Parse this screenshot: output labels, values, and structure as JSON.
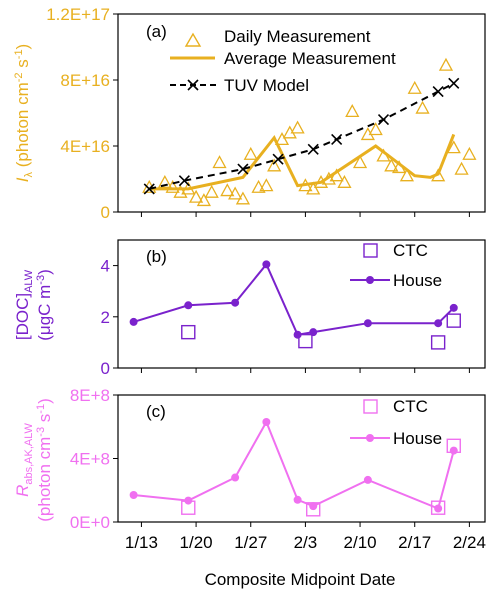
{
  "colors": {
    "gold": "#E8B020",
    "purple": "#7A22CC",
    "pink": "#F070F0",
    "black": "#000000"
  },
  "xlabel": "Composite Midpoint Date",
  "x_tick_labels": [
    "1/13",
    "1/20",
    "1/27",
    "2/3",
    "2/10",
    "2/17",
    "2/24"
  ],
  "x_tick_days": [
    13,
    20,
    27,
    34,
    41,
    48,
    55
  ],
  "x_range": [
    10,
    57
  ],
  "chart_data": [
    {
      "type": "scatter",
      "panel_label": "(a)",
      "ylabel_text": "I",
      "ylabel_sub": "λ",
      "ylabel_unit": "(photon cm",
      "ylabel_sup1": "-2",
      "ylabel_mid": " s",
      "ylabel_sup2": "-1",
      "ylabel_close": ")",
      "ylim": [
        0,
        1.2e+17
      ],
      "y_ticks": [
        0,
        4e+16,
        8e+16,
        1.2e+17
      ],
      "y_tick_labels": [
        "0",
        "4E+16",
        "8E+16",
        "1.2E+17"
      ],
      "legend_position": "top-right",
      "series": [
        {
          "name": "Daily Measurement",
          "kind": "triangle",
          "color": "#E8B020",
          "points": [
            [
              14,
              1.5e+16
            ],
            [
              16,
              1.8e+16
            ],
            [
              17,
              1.5e+16
            ],
            [
              18,
              1.2e+16
            ],
            [
              19,
              1.4e+16
            ],
            [
              20,
              9000000000000000.0
            ],
            [
              21,
              7000000000000000.0
            ],
            [
              22,
              1.2e+16
            ],
            [
              23,
              3e+16
            ],
            [
              24,
              1.3e+16
            ],
            [
              25,
              1.1e+16
            ],
            [
              26,
              8000000000000000.0
            ],
            [
              27,
              3.5e+16
            ],
            [
              28,
              1.5e+16
            ],
            [
              29,
              1.6e+16
            ],
            [
              30,
              2.8e+16
            ],
            [
              31,
              4.4e+16
            ],
            [
              32,
              4.8e+16
            ],
            [
              33,
              5.1e+16
            ],
            [
              34,
              1.6e+16
            ],
            [
              35,
              1.4e+16
            ],
            [
              36,
              1.8e+16
            ],
            [
              37,
              2e+16
            ],
            [
              38,
              2.2e+16
            ],
            [
              39,
              1.8e+16
            ],
            [
              40,
              6.1e+16
            ],
            [
              41,
              3e+16
            ],
            [
              42,
              4.7e+16
            ],
            [
              43,
              5e+16
            ],
            [
              44,
              3.4e+16
            ],
            [
              45,
              2.8e+16
            ],
            [
              46,
              2.7e+16
            ],
            [
              47,
              2.2e+16
            ],
            [
              48,
              7.5e+16
            ],
            [
              49,
              6.3e+16
            ],
            [
              51,
              2.2e+16
            ],
            [
              52,
              8.9e+16
            ],
            [
              53,
              3.9e+16
            ],
            [
              54,
              2.6e+16
            ],
            [
              55,
              3.5e+16
            ]
          ]
        },
        {
          "name": "Average Measurement",
          "kind": "line",
          "color": "#E8B020",
          "points": [
            [
              14,
              1.4e+16
            ],
            [
              19,
              1.4e+16
            ],
            [
              26,
              2.1e+16
            ],
            [
              30,
              4.5e+16
            ],
            [
              33,
              1.6e+16
            ],
            [
              36,
              1.8e+16
            ],
            [
              43,
              4e+16
            ],
            [
              48,
              2.2e+16
            ],
            [
              50,
              2.1e+16
            ],
            [
              51,
              2.3e+16
            ],
            [
              53,
              4.7e+16
            ]
          ]
        },
        {
          "name": "TUV Model",
          "kind": "dashed-x",
          "color": "#000000",
          "points": [
            [
              14,
              1.4e+16
            ],
            [
              18.5,
              1.9e+16
            ],
            [
              26,
              2.6e+16
            ],
            [
              30.5,
              3.2e+16
            ],
            [
              35,
              3.8e+16
            ],
            [
              38,
              4.4e+16
            ],
            [
              44,
              5.6e+16
            ],
            [
              51,
              7.3e+16
            ],
            [
              53,
              7.8e+16
            ]
          ]
        }
      ]
    },
    {
      "type": "line",
      "panel_label": "(b)",
      "ylabel_text": "[DOC]",
      "ylabel_sub": "ALW",
      "ylabel_unit": "(μgC m",
      "ylabel_sup1": "-3",
      "ylabel_close": ")",
      "ylim": [
        0,
        5
      ],
      "y_ticks": [
        0,
        2,
        4
      ],
      "y_tick_labels": [
        "0",
        "2",
        "4"
      ],
      "legend_position": "top-right",
      "series": [
        {
          "name": "CTC",
          "kind": "square",
          "color": "#7A22CC",
          "points": [
            [
              19,
              1.4
            ],
            [
              34,
              1.05
            ],
            [
              51,
              1.0
            ],
            [
              53,
              1.85
            ]
          ]
        },
        {
          "name": "House",
          "kind": "line-dot",
          "color": "#7A22CC",
          "points": [
            [
              12,
              1.8
            ],
            [
              19,
              2.45
            ],
            [
              25,
              2.55
            ],
            [
              29,
              4.05
            ],
            [
              33,
              1.3
            ],
            [
              35,
              1.4
            ],
            [
              42,
              1.75
            ],
            [
              51,
              1.75
            ],
            [
              53,
              2.35
            ]
          ]
        }
      ]
    },
    {
      "type": "line",
      "panel_label": "(c)",
      "ylabel_text": "R",
      "ylabel_sub": "abs,AK,ALW",
      "ylabel_unit": "(photon cm",
      "ylabel_sup1": "-3",
      "ylabel_mid": " s",
      "ylabel_sup2": "-1",
      "ylabel_close": ")",
      "ylim": [
        0,
        800000000.0
      ],
      "y_ticks": [
        0,
        400000000.0,
        800000000.0
      ],
      "y_tick_labels": [
        "0E+0",
        "4E+8",
        "8E+8"
      ],
      "legend_position": "top-right",
      "series": [
        {
          "name": "CTC",
          "kind": "square",
          "color": "#F070F0",
          "points": [
            [
              19,
              90000000.0
            ],
            [
              35,
              80000000.0
            ],
            [
              51,
              90000000.0
            ],
            [
              53,
              480000000.0
            ]
          ]
        },
        {
          "name": "House",
          "kind": "line-dot",
          "color": "#F070F0",
          "points": [
            [
              12,
              170000000.0
            ],
            [
              19,
              135000000.0
            ],
            [
              25,
              280000000.0
            ],
            [
              29,
              630000000.0
            ],
            [
              33,
              140000000.0
            ],
            [
              35,
              100000000.0
            ],
            [
              42,
              265000000.0
            ],
            [
              51,
              85000000.0
            ],
            [
              53,
              450000000.0
            ]
          ]
        }
      ]
    }
  ]
}
